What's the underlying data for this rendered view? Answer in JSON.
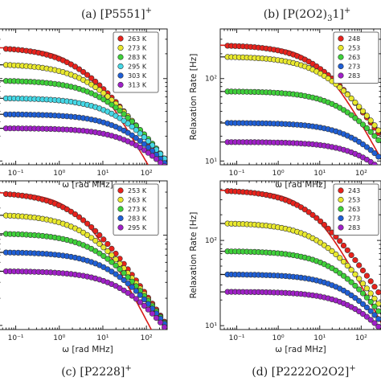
{
  "chart_data": [
    {
      "type": "scatter",
      "panel": "a",
      "title": "(a) [P5551]",
      "title_sup": "+",
      "xlabel": "ω [rad MHz]",
      "ylabel": "",
      "x_scale": "log",
      "y_scale": "log",
      "xlim": [
        0.04,
        300
      ],
      "ylim": [
        9,
        400
      ],
      "xticks": [
        "10⁻¹",
        "10⁰",
        "10¹",
        "10²"
      ],
      "yticks": [],
      "legend_position": "top-right",
      "fit_line": "solid, color per series; red fit dips below at high ω",
      "series": [
        {
          "name": "263 K",
          "color": "#e8221c",
          "plateau": 240,
          "tau": 0.28
        },
        {
          "name": "273 K",
          "color": "#e9e92e",
          "plateau": 150,
          "tau": 0.13
        },
        {
          "name": "283 K",
          "color": "#3fd13a",
          "plateau": 95,
          "tau": 0.06
        },
        {
          "name": "295 K",
          "color": "#45d8e6",
          "plateau": 58,
          "tau": 0.028
        },
        {
          "name": "303 K",
          "color": "#1f5fd6",
          "plateau": 37,
          "tau": 0.016
        },
        {
          "name": "313 K",
          "color": "#a020c8",
          "plateau": 25,
          "tau": 0.009
        }
      ]
    },
    {
      "type": "scatter",
      "panel": "b",
      "title": "(b) [P(2O2)",
      "title_sub": "3",
      "title_end": "1]",
      "title_sup": "+",
      "xlabel": "ω [rad MHz]",
      "ylabel": "Relaxation Rate [Hz]",
      "x_scale": "log",
      "y_scale": "log",
      "xlim": [
        0.04,
        300
      ],
      "ylim": [
        9,
        400
      ],
      "xticks": [
        "10⁻¹",
        "10⁰",
        "10¹",
        "10²"
      ],
      "yticks": [
        "10¹",
        "10²"
      ],
      "legend_position": "top-right",
      "series": [
        {
          "name": "248",
          "color": "#e8221c",
          "plateau": 255,
          "tau": 0.09
        },
        {
          "name": "253",
          "color": "#e9e92e",
          "plateau": 185,
          "tau": 0.05
        },
        {
          "name": "263",
          "color": "#3fd13a",
          "plateau": 70,
          "tau": 0.016
        },
        {
          "name": "273",
          "color": "#1f5fd6",
          "plateau": 29,
          "tau": 0.007
        },
        {
          "name": "283",
          "color": "#a020c8",
          "plateau": 17,
          "tau": 0.004
        }
      ]
    },
    {
      "type": "scatter",
      "panel": "c",
      "title": "(c) [P2228]",
      "title_sup": "+",
      "xlabel": "ω [rad MHz]",
      "ylabel": "",
      "x_scale": "log",
      "y_scale": "log",
      "xlim": [
        0.04,
        300
      ],
      "ylim": [
        9,
        400
      ],
      "xticks": [
        "10⁻¹",
        "10⁰",
        "10¹",
        "10²"
      ],
      "yticks": [],
      "legend_position": "top-right",
      "series": [
        {
          "name": "253 K",
          "color": "#e8221c",
          "plateau": 300,
          "tau": 0.3
        },
        {
          "name": "263 K",
          "color": "#e9e92e",
          "plateau": 170,
          "tau": 0.14
        },
        {
          "name": "273 K",
          "color": "#3fd13a",
          "plateau": 105,
          "tau": 0.07
        },
        {
          "name": "283 K",
          "color": "#1f5fd6",
          "plateau": 65,
          "tau": 0.035
        },
        {
          "name": "295 K",
          "color": "#a020c8",
          "plateau": 40,
          "tau": 0.018
        }
      ]
    },
    {
      "type": "scatter",
      "panel": "d",
      "title": "(d) [P2222O2O2]",
      "title_sup": "+",
      "xlabel": "ω [rad MHz]",
      "ylabel": "Relaxation Rate [Hz]",
      "x_scale": "log",
      "y_scale": "log",
      "xlim": [
        0.04,
        300
      ],
      "ylim": [
        9,
        500
      ],
      "xticks": [
        "10⁻¹",
        "10⁰",
        "10¹",
        "10²"
      ],
      "yticks": [
        "10¹",
        "10²"
      ],
      "legend_position": "top-right",
      "series": [
        {
          "name": "243",
          "color": "#e8221c",
          "plateau": 390,
          "tau": 0.14
        },
        {
          "name": "253",
          "color": "#e9e92e",
          "plateau": 160,
          "tau": 0.06
        },
        {
          "name": "263",
          "color": "#3fd13a",
          "plateau": 75,
          "tau": 0.025
        },
        {
          "name": "273",
          "color": "#1f5fd6",
          "plateau": 40,
          "tau": 0.012
        },
        {
          "name": "283",
          "color": "#a020c8",
          "plateau": 25,
          "tau": 0.007
        }
      ]
    }
  ]
}
